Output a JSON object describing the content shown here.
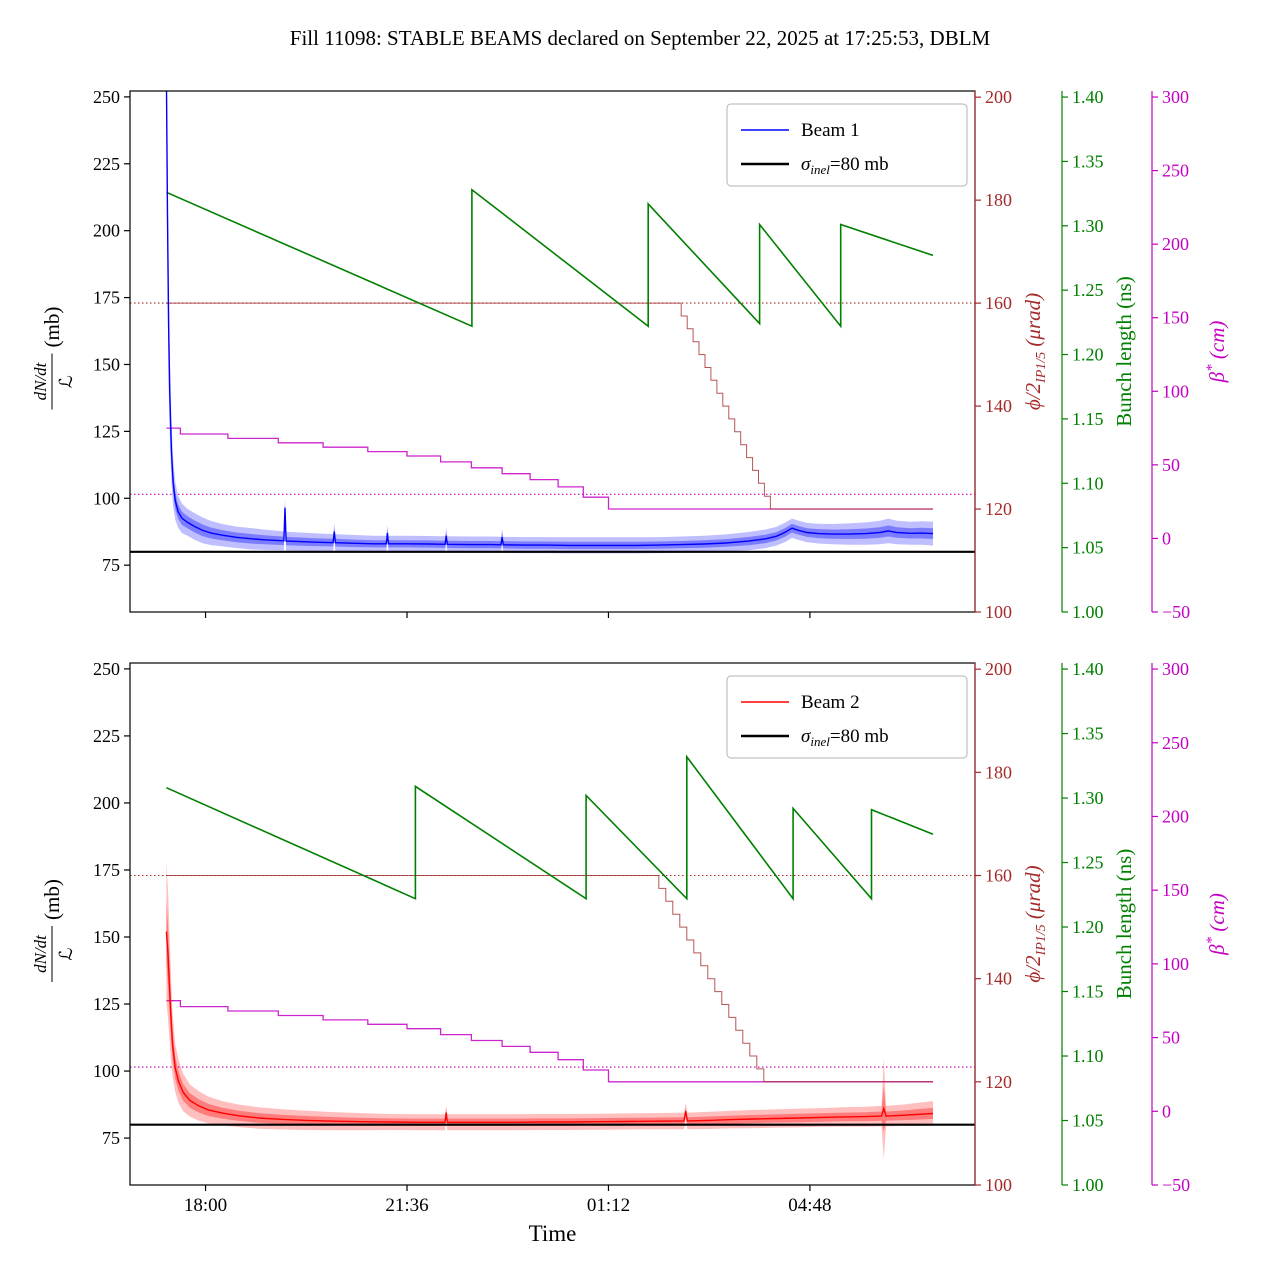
{
  "title": "Fill 11098: STABLE BEAMS declared on September 22, 2025 at 17:25:53, DBLM",
  "chart_data": {
    "type": "line",
    "x": {
      "label": "Time",
      "range": [
        16.65,
        31.75
      ],
      "ticks": [
        {
          "value": 18.0,
          "label": "18:00"
        },
        {
          "value": 21.6,
          "label": "21:36"
        },
        {
          "value": 25.2,
          "label": "01:12"
        },
        {
          "value": 28.8,
          "label": "04:48"
        }
      ]
    },
    "y_axes": {
      "rate": {
        "label_num": "dN/dt",
        "label_den": "ℒ",
        "label_unit": "(mb)",
        "color": "#000000",
        "range": [
          57.5,
          252.2
        ],
        "ticks": [
          75,
          100,
          125,
          150,
          175,
          200,
          225,
          250
        ]
      },
      "crossing": {
        "label_main": "ϕ/2",
        "label_sub": "IP1/5",
        "label_unit": " (μrad)",
        "color": "#a52a2a",
        "range": [
          100,
          201.2
        ],
        "ticks": [
          100,
          120,
          140,
          160,
          180,
          200
        ]
      },
      "bunch": {
        "label": "Bunch length (ns)",
        "color": "#008000",
        "range": [
          1.0,
          1.4047
        ],
        "ticks": [
          "1.00",
          "1.05",
          "1.10",
          "1.15",
          "1.20",
          "1.25",
          "1.30",
          "1.35",
          "1.40"
        ]
      },
      "beta": {
        "label_main": "β",
        "label_sup": "*",
        "label_unit": " (cm)",
        "color": "#c400c4",
        "range": [
          -50,
          304.1
        ],
        "ticks": [
          -50,
          0,
          50,
          100,
          150,
          200,
          250,
          300
        ]
      }
    },
    "subplots": [
      {
        "name": "beam1",
        "legend": [
          {
            "type": "line",
            "color": "#0000ff",
            "label": "Beam 1"
          },
          {
            "type": "sigma",
            "color": "#000000",
            "pre": "σ",
            "sub": "inel",
            "post": "=80 mb"
          }
        ],
        "sigma_value": 80,
        "beam": {
          "color": "#0000ff",
          "points": [
            [
              17.3,
              258,
              18
            ],
            [
              17.32,
              205,
              25
            ],
            [
              17.34,
              165,
              22
            ],
            [
              17.36,
              140,
              16
            ],
            [
              17.39,
              118,
              12
            ],
            [
              17.42,
              106,
              9
            ],
            [
              17.46,
              99,
              7
            ],
            [
              17.51,
              95,
              6
            ],
            [
              17.58,
              92.5,
              5.5
            ],
            [
              17.68,
              91,
              5
            ],
            [
              17.8,
              89.5,
              5
            ],
            [
              17.95,
              88,
              4.8
            ],
            [
              18.1,
              87,
              4.5
            ],
            [
              18.3,
              86.2,
              4.2
            ],
            [
              18.55,
              85.4,
              4
            ],
            [
              18.8,
              84.9,
              4
            ],
            [
              19.05,
              84.5,
              3.8
            ],
            [
              19.3,
              84.2,
              3.6
            ],
            [
              19.4,
              84.1,
              3.5
            ],
            [
              19.42,
              96.5,
              3.5
            ],
            [
              19.44,
              84.0,
              3.5
            ],
            [
              19.7,
              83.8,
              3.4
            ],
            [
              19.95,
              83.6,
              3.3
            ],
            [
              20.28,
              83.4,
              3.2
            ],
            [
              20.3,
              87.5,
              3.2
            ],
            [
              20.32,
              83.4,
              3.2
            ],
            [
              20.6,
              83.2,
              3.1
            ],
            [
              21.0,
              83.0,
              3
            ],
            [
              21.23,
              83.0,
              3
            ],
            [
              21.25,
              87.0,
              3
            ],
            [
              21.27,
              83.0,
              3
            ],
            [
              21.6,
              83.0,
              3
            ],
            [
              22.0,
              82.9,
              3
            ],
            [
              22.28,
              82.8,
              3
            ],
            [
              22.3,
              86.0,
              3
            ],
            [
              22.32,
              82.8,
              3
            ],
            [
              22.7,
              82.7,
              3
            ],
            [
              23.1,
              82.7,
              3
            ],
            [
              23.28,
              82.6,
              3
            ],
            [
              23.3,
              85.5,
              3
            ],
            [
              23.32,
              82.6,
              3
            ],
            [
              23.7,
              82.5,
              3
            ],
            [
              24.1,
              82.5,
              3
            ],
            [
              24.5,
              82.4,
              3
            ],
            [
              24.9,
              82.4,
              3
            ],
            [
              25.3,
              82.4,
              3
            ],
            [
              25.7,
              82.4,
              3
            ],
            [
              26.1,
              82.5,
              3
            ],
            [
              26.5,
              82.7,
              3
            ],
            [
              26.9,
              82.9,
              3.1
            ],
            [
              27.3,
              83.3,
              3.2
            ],
            [
              27.7,
              84.0,
              3.4
            ],
            [
              28.0,
              84.8,
              3.5
            ],
            [
              28.2,
              85.8,
              3.5
            ],
            [
              28.35,
              87.2,
              3.6
            ],
            [
              28.48,
              88.8,
              3.6
            ],
            [
              28.6,
              88.0,
              3.6
            ],
            [
              28.75,
              87.2,
              3.6
            ],
            [
              28.95,
              86.8,
              3.7
            ],
            [
              29.2,
              86.6,
              3.8
            ],
            [
              29.5,
              86.6,
              4
            ],
            [
              29.8,
              86.8,
              4.2
            ],
            [
              30.05,
              87.2,
              4.4
            ],
            [
              30.2,
              87.8,
              4.6
            ],
            [
              30.35,
              87.2,
              4.4
            ],
            [
              30.6,
              86.9,
              4.3
            ],
            [
              30.8,
              87.0,
              4.4
            ],
            [
              31.0,
              86.8,
              4.5
            ]
          ]
        },
        "bunch_points": [
          [
            17.3,
            1.326
          ],
          [
            22.76,
            1.222
          ],
          [
            22.76,
            1.328
          ],
          [
            25.91,
            1.222
          ],
          [
            25.91,
            1.317
          ],
          [
            27.9,
            1.224
          ],
          [
            27.9,
            1.301
          ],
          [
            29.35,
            1.222
          ],
          [
            29.35,
            1.301
          ],
          [
            31.0,
            1.277
          ]
        ],
        "crossing_dotted": 160,
        "crossing_steps": {
          "flat_from": 17.3,
          "flat_to": 26.5,
          "high": 160,
          "low": 120,
          "desc_to": 28.2,
          "steps": 16,
          "hold_to": 31.0
        },
        "beta_dotted": 30,
        "beta_steps": [
          [
            17.3,
            17.55,
            75
          ],
          [
            17.55,
            18.4,
            71
          ],
          [
            18.4,
            19.3,
            68
          ],
          [
            19.3,
            20.1,
            65
          ],
          [
            20.1,
            20.9,
            62
          ],
          [
            20.9,
            21.6,
            59
          ],
          [
            21.6,
            22.2,
            56
          ],
          [
            22.2,
            22.75,
            52
          ],
          [
            22.75,
            23.3,
            48
          ],
          [
            23.3,
            23.8,
            44
          ],
          [
            23.8,
            24.3,
            40
          ],
          [
            24.3,
            24.75,
            35
          ],
          [
            24.75,
            25.2,
            28
          ],
          [
            25.2,
            31.0,
            20
          ]
        ]
      },
      {
        "name": "beam2",
        "legend": [
          {
            "type": "line",
            "color": "#ff0000",
            "label": "Beam 2"
          },
          {
            "type": "sigma",
            "color": "#000000",
            "pre": "σ",
            "sub": "inel",
            "post": "=80 mb"
          }
        ],
        "sigma_value": 80,
        "beam": {
          "color": "#ff0000",
          "points": [
            [
              17.3,
              152,
              26
            ],
            [
              17.33,
              143,
              24
            ],
            [
              17.37,
              125,
              18
            ],
            [
              17.41,
              110,
              12
            ],
            [
              17.46,
              101,
              9
            ],
            [
              17.52,
              96,
              8
            ],
            [
              17.6,
              92,
              7
            ],
            [
              17.72,
              89,
              6
            ],
            [
              17.88,
              87,
              5.5
            ],
            [
              18.05,
              85.5,
              5
            ],
            [
              18.3,
              84.3,
              4.5
            ],
            [
              18.6,
              83.3,
              4.2
            ],
            [
              18.95,
              82.5,
              4
            ],
            [
              19.35,
              82.0,
              3.8
            ],
            [
              19.8,
              81.6,
              3.6
            ],
            [
              20.3,
              81.3,
              3.4
            ],
            [
              20.8,
              81.1,
              3.2
            ],
            [
              21.3,
              81.0,
              3
            ],
            [
              21.8,
              80.9,
              3
            ],
            [
              22.28,
              80.9,
              3
            ],
            [
              22.3,
              84.5,
              3
            ],
            [
              22.32,
              80.9,
              3
            ],
            [
              23.0,
              80.9,
              3
            ],
            [
              23.5,
              80.9,
              3
            ],
            [
              24.0,
              81.0,
              3
            ],
            [
              24.5,
              81.0,
              3
            ],
            [
              25.0,
              81.1,
              3
            ],
            [
              25.5,
              81.2,
              3
            ],
            [
              26.0,
              81.3,
              3
            ],
            [
              26.55,
              81.4,
              3.1
            ],
            [
              26.58,
              85.0,
              3.1
            ],
            [
              26.61,
              81.4,
              3.1
            ],
            [
              27.0,
              81.6,
              3.2
            ],
            [
              27.4,
              81.9,
              3.3
            ],
            [
              27.8,
              82.1,
              3.4
            ],
            [
              28.2,
              82.3,
              3.4
            ],
            [
              28.6,
              82.5,
              3.5
            ],
            [
              29.0,
              82.7,
              3.5
            ],
            [
              29.4,
              82.9,
              3.6
            ],
            [
              29.8,
              83.0,
              3.7
            ],
            [
              30.08,
              83.2,
              3.8
            ],
            [
              30.12,
              86,
              19
            ],
            [
              30.16,
              83.2,
              3.8
            ],
            [
              30.45,
              83.5,
              4
            ],
            [
              30.7,
              83.8,
              4.3
            ],
            [
              31.0,
              84.2,
              4.6
            ]
          ]
        },
        "bunch_points": [
          [
            17.3,
            1.308
          ],
          [
            21.75,
            1.222
          ],
          [
            21.75,
            1.309
          ],
          [
            24.8,
            1.222
          ],
          [
            24.8,
            1.302
          ],
          [
            26.6,
            1.222
          ],
          [
            26.6,
            1.332
          ],
          [
            28.5,
            1.222
          ],
          [
            28.5,
            1.292
          ],
          [
            29.9,
            1.222
          ],
          [
            29.9,
            1.291
          ],
          [
            31.0,
            1.272
          ]
        ],
        "crossing_dotted": 160,
        "crossing_steps": {
          "flat_from": 17.3,
          "flat_to": 26.1,
          "high": 160,
          "low": 120,
          "desc_to": 28.1,
          "steps": 16,
          "hold_to": 31.0
        },
        "beta_dotted": 30,
        "beta_steps": [
          [
            17.3,
            17.55,
            75
          ],
          [
            17.55,
            18.4,
            71
          ],
          [
            18.4,
            19.3,
            68
          ],
          [
            19.3,
            20.1,
            65
          ],
          [
            20.1,
            20.9,
            62
          ],
          [
            20.9,
            21.6,
            59
          ],
          [
            21.6,
            22.2,
            56
          ],
          [
            22.2,
            22.75,
            52
          ],
          [
            22.75,
            23.3,
            48
          ],
          [
            23.3,
            23.8,
            44
          ],
          [
            23.8,
            24.3,
            40
          ],
          [
            24.3,
            24.75,
            35
          ],
          [
            24.75,
            25.2,
            28
          ],
          [
            25.2,
            31.0,
            20
          ]
        ]
      }
    ]
  }
}
